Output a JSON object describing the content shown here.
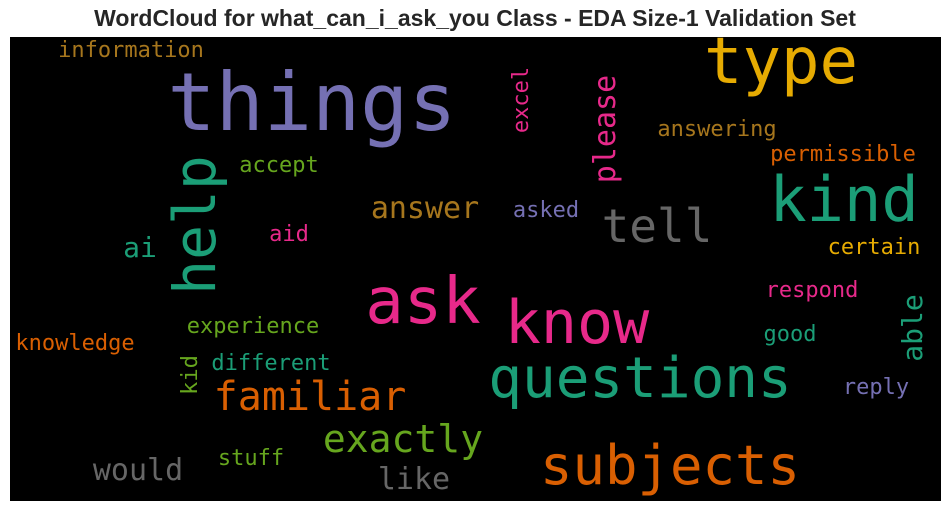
{
  "chart_data": {
    "type": "wordcloud",
    "title": "WordCloud for what_can_i_ask_you Class - EDA Size-1 Validation Set",
    "words": [
      {
        "text": "things",
        "color": "#7570b3"
      },
      {
        "text": "type",
        "color": "#e6ab02"
      },
      {
        "text": "kind",
        "color": "#1b9e77"
      },
      {
        "text": "help",
        "color": "#1b9e77"
      },
      {
        "text": "tell",
        "color": "#666666"
      },
      {
        "text": "ask",
        "color": "#e7298a"
      },
      {
        "text": "know",
        "color": "#e7298a"
      },
      {
        "text": "questions",
        "color": "#1b9e77"
      },
      {
        "text": "subjects",
        "color": "#d95f02"
      },
      {
        "text": "familiar",
        "color": "#d95f02"
      },
      {
        "text": "exactly",
        "color": "#66a61e"
      },
      {
        "text": "answer",
        "color": "#a6761d"
      },
      {
        "text": "please",
        "color": "#e7298a"
      },
      {
        "text": "information",
        "color": "#a6761d"
      },
      {
        "text": "excel",
        "color": "#e7298a"
      },
      {
        "text": "answering",
        "color": "#a6761d"
      },
      {
        "text": "permissible",
        "color": "#d95f02"
      },
      {
        "text": "accept",
        "color": "#66a61e"
      },
      {
        "text": "asked",
        "color": "#7570b3"
      },
      {
        "text": "ai",
        "color": "#1b9e77"
      },
      {
        "text": "aid",
        "color": "#e7298a"
      },
      {
        "text": "certain",
        "color": "#e6ab02"
      },
      {
        "text": "respond",
        "color": "#e7298a"
      },
      {
        "text": "able",
        "color": "#1b9e77"
      },
      {
        "text": "experience",
        "color": "#66a61e"
      },
      {
        "text": "good",
        "color": "#1b9e77"
      },
      {
        "text": "knowledge",
        "color": "#d95f02"
      },
      {
        "text": "kid",
        "color": "#66a61e"
      },
      {
        "text": "different",
        "color": "#1b9e77"
      },
      {
        "text": "reply",
        "color": "#7570b3"
      },
      {
        "text": "would",
        "color": "#666666"
      },
      {
        "text": "stuff",
        "color": "#66a61e"
      },
      {
        "text": "like",
        "color": "#666666"
      }
    ]
  }
}
